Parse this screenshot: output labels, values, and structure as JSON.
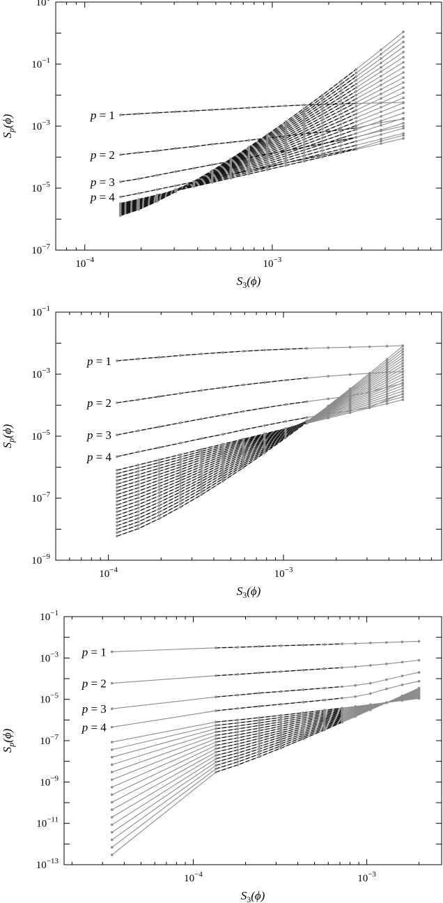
{
  "chart_data": [
    {
      "type": "line",
      "xscale": "log",
      "yscale": "log",
      "xlabel": "S_3(ϕ)",
      "ylabel": "S_p(ϕ)",
      "xlim": [
        7e-05,
        0.008
      ],
      "ylim": [
        1e-07,
        10
      ],
      "xticks": [
        {
          "value": 0.0001,
          "label": "10^-4"
        },
        {
          "value": 0.001,
          "label": "10^-3"
        }
      ],
      "yticks": [
        {
          "value": 1e-07,
          "label": "10^-7"
        },
        {
          "value": 1e-05,
          "label": "10^-5"
        },
        {
          "value": 0.001,
          "label": "10^-3"
        },
        {
          "value": 0.1,
          "label": "10^-1"
        },
        {
          "value": 10,
          "label": "10^1"
        }
      ],
      "annotations": [
        {
          "text": "p = 1",
          "y": 0.0023
        },
        {
          "text": "p = 2",
          "y": 0.00012
        },
        {
          "text": "p = 3",
          "y": 1.6e-05
        },
        {
          "text": "p = 4",
          "y": 5.2e-06
        }
      ],
      "x": [
        0.000155,
        0.000194,
        0.000243,
        0.000305,
        0.000382,
        0.000478,
        0.0006,
        0.00075,
        0.00094,
        0.00118,
        0.00148,
        0.00185,
        0.00232,
        0.0028,
        0.0038,
        0.005
      ],
      "dashed_segments": [
        [
          0,
          13
        ]
      ],
      "series": [
        {
          "values": [
            0.0023,
            0.0025,
            0.0027,
            0.0029,
            0.0031,
            0.00335,
            0.0036,
            0.0039,
            0.0042,
            0.0045,
            0.0048,
            0.005,
            0.0052,
            0.0054,
            0.0056,
            0.0058
          ]
        },
        {
          "values": [
            0.00012,
            0.00014,
            0.00016,
            0.00019,
            0.00022,
            0.00026,
            0.0003,
            0.00035,
            0.00041,
            0.00048,
            0.00056,
            0.00065,
            0.00076,
            0.00087,
            0.0013,
            0.0017
          ]
        },
        {
          "values": [
            1.6e-05,
            2e-05,
            2.6e-05,
            3.4e-05,
            4.4e-05,
            5.7e-05,
            7.4e-05,
            9.6e-05,
            0.000125,
            0.00016,
            0.00021,
            0.00027,
            0.00035,
            0.00044,
            0.0007,
            0.001
          ]
        },
        {
          "values": [
            5.2e-06,
            6.8e-06,
            9e-06,
            1.2e-05,
            1.6e-05,
            2.1e-05,
            2.8e-05,
            3.7e-05,
            4.9e-05,
            6.5e-05,
            8.6e-05,
            0.000114,
            0.00015,
            0.00019,
            0.00033,
            0.0005
          ]
        }
      ],
      "family": {
        "count": 22,
        "start_y": [
          1.3e-06,
          3.2e-06
        ],
        "end_y": [
          0.0004,
          1.1
        ],
        "join_index": 13
      }
    },
    {
      "type": "line",
      "xscale": "log",
      "yscale": "log",
      "xlabel": "S_3(ϕ)",
      "ylabel": "S_p(ϕ)",
      "xlim": [
        5e-05,
        0.008
      ],
      "ylim": [
        1e-09,
        0.1
      ],
      "xticks": [
        {
          "value": 0.0001,
          "label": "10^-4"
        },
        {
          "value": 0.001,
          "label": "10^-3"
        }
      ],
      "yticks": [
        {
          "value": 1e-09,
          "label": "10^-9"
        },
        {
          "value": 1e-07,
          "label": "10^-7"
        },
        {
          "value": 1e-05,
          "label": "10^-5"
        },
        {
          "value": 0.001,
          "label": "10^-3"
        },
        {
          "value": 0.1,
          "label": "10^-1"
        }
      ],
      "annotations": [
        {
          "text": "p = 1",
          "y": 0.0027
        },
        {
          "text": "p = 2",
          "y": 0.00012
        },
        {
          "text": "p = 3",
          "y": 1.1e-05
        },
        {
          "text": "p = 4",
          "y": 2.2e-06
        }
      ],
      "x": [
        0.000112,
        0.000148,
        0.000195,
        0.000258,
        0.00034,
        0.00045,
        0.00059,
        0.00078,
        0.00103,
        0.00136,
        0.0018,
        0.0024,
        0.0031,
        0.0039,
        0.0048
      ],
      "dashed_segments": [
        [
          0,
          9
        ]
      ],
      "series": [
        {
          "values": [
            0.0027,
            0.0031,
            0.0035,
            0.004,
            0.0045,
            0.005,
            0.0055,
            0.006,
            0.0064,
            0.0068,
            0.0071,
            0.0074,
            0.0077,
            0.008,
            0.0083
          ]
        },
        {
          "values": [
            0.00012,
            0.00015,
            0.00019,
            0.00024,
            0.0003,
            0.00037,
            0.00045,
            0.00054,
            0.00064,
            0.00075,
            0.00086,
            0.00097,
            0.00107,
            0.00115,
            0.0012
          ]
        },
        {
          "values": [
            1.1e-05,
            1.5e-05,
            2e-05,
            2.7e-05,
            3.6e-05,
            4.8e-05,
            6.3e-05,
            8.2e-05,
            0.000105,
            0.00013,
            0.00016,
            0.0002,
            0.00026,
            0.00038,
            0.0005
          ]
        },
        {
          "values": [
            2.2e-06,
            3.1e-06,
            4.3e-06,
            6e-06,
            8.4e-06,
            1.15e-05,
            1.6e-05,
            2.2e-05,
            3e-05,
            4e-05,
            5.2e-05,
            6.6e-05,
            8.4e-05,
            0.00015,
            0.00023
          ]
        }
      ],
      "family": {
        "count": 20,
        "start_y": [
          6e-09,
          8e-07
        ],
        "end_y": [
          0.00015,
          0.008
        ],
        "join_index": 9
      }
    },
    {
      "type": "line",
      "xscale": "log",
      "yscale": "log",
      "xlabel": "S_3(ϕ)",
      "ylabel": "S_p(ϕ)",
      "xlim": [
        1.8e-05,
        0.0027
      ],
      "ylim": [
        1e-13,
        0.1
      ],
      "xticks": [
        {
          "value": 0.0001,
          "label": "10^-4"
        },
        {
          "value": 0.001,
          "label": "10^-3"
        }
      ],
      "yticks": [
        {
          "value": 1e-13,
          "label": "10^-13"
        },
        {
          "value": 1e-11,
          "label": "10^-11"
        },
        {
          "value": 1e-09,
          "label": "10^-9"
        },
        {
          "value": 1e-07,
          "label": "10^-7"
        },
        {
          "value": 1e-05,
          "label": "10^-5"
        },
        {
          "value": 0.001,
          "label": "10^-3"
        },
        {
          "value": 0.1,
          "label": "10^-1"
        }
      ],
      "annotations": [
        {
          "text": "p = 1",
          "y": 0.002
        },
        {
          "text": "p = 2",
          "y": 6e-05
        },
        {
          "text": "p = 3",
          "y": 3.5e-06
        },
        {
          "text": "p = 4",
          "y": 4.5e-07
        }
      ],
      "x": [
        3.4e-05,
        0.000135,
        0.00018,
        0.00024,
        0.00032,
        0.00043,
        0.00057,
        0.00072,
        0.00086,
        0.00105,
        0.0013,
        0.0016,
        0.002
      ],
      "dashed_segments": [
        [
          1,
          7
        ]
      ],
      "series": [
        {
          "values": [
            0.002,
            0.0031,
            0.0033,
            0.0036,
            0.0039,
            0.0042,
            0.0045,
            0.0048,
            0.005,
            0.0053,
            0.0056,
            0.006,
            0.0064
          ]
        },
        {
          "values": [
            6e-05,
            0.00014,
            0.00016,
            0.00019,
            0.00022,
            0.00026,
            0.0003,
            0.00034,
            0.00038,
            0.00044,
            0.00052,
            0.00063,
            0.00078
          ]
        },
        {
          "values": [
            3.5e-06,
            1.3e-05,
            1.6e-05,
            2e-05,
            2.4e-05,
            2.9e-05,
            3.5e-05,
            4.1e-05,
            4.7e-05,
            6e-05,
            9e-05,
            0.000135,
            0.0002
          ]
        },
        {
          "values": [
            4.5e-07,
            2.8e-06,
            3.6e-06,
            4.6e-06,
            5.8e-06,
            7.3e-06,
            9.2e-06,
            1.15e-05,
            1.35e-05,
            1.9e-05,
            3.2e-05,
            5e-05,
            7.5e-05
          ]
        }
      ],
      "family": {
        "count": 16,
        "start_y": [
          3e-13,
          8.5e-08
        ],
        "mid_y": [
          3e-09,
          8e-07
        ],
        "end_y": [
          1.1e-05,
          3.5e-05
        ],
        "join_index": 7
      }
    }
  ]
}
